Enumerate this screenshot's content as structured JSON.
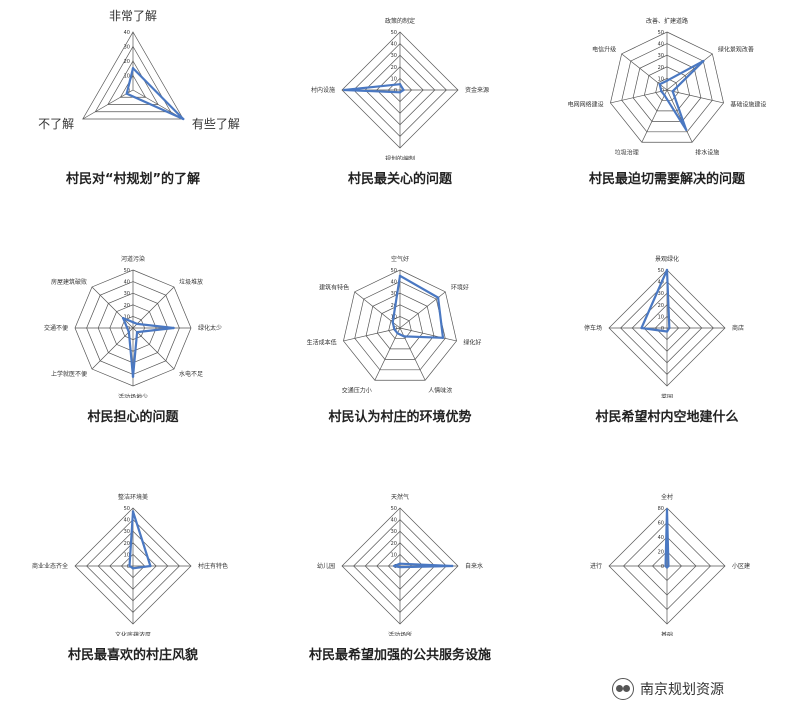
{
  "chart_data": [
    {
      "type": "radar",
      "title": "村民对“村规划”的了解",
      "axes": [
        "非常了解",
        "有些了解",
        "不了解"
      ],
      "rlim": [
        0,
        40
      ],
      "ticks": [
        0,
        10,
        20,
        30,
        40
      ],
      "values": [
        15,
        40,
        5
      ],
      "label_size": "large"
    },
    {
      "type": "radar",
      "title": "村民最关心的问题",
      "axes": [
        "政策的制定",
        "资金来源",
        "规划的编制",
        "村内设施"
      ],
      "rlim": [
        0,
        50
      ],
      "ticks": [
        0,
        10,
        20,
        30,
        40,
        50
      ],
      "values": [
        5,
        3,
        2,
        48
      ]
    },
    {
      "type": "radar",
      "title": "村民最迫切需要解决的问题",
      "axes": [
        "改善、扩建道路",
        "绿化景观改善",
        "基础设施建设",
        "排水设施",
        "垃圾治理",
        "电网网络建设",
        "电信升级"
      ],
      "rlim": [
        0,
        50
      ],
      "ticks": [
        0,
        10,
        20,
        30,
        40,
        50
      ],
      "values": [
        8,
        40,
        5,
        38,
        5,
        5,
        8
      ]
    },
    {
      "type": "radar",
      "title": "村民担心的问题",
      "axes": [
        "河道污染",
        "垃圾堆放",
        "绿化太少",
        "水电不足",
        "活动场地少",
        "上学就医不便",
        "交通不便",
        "房屋建筑破败"
      ],
      "rlim": [
        0,
        50
      ],
      "ticks": [
        0,
        10,
        20,
        30,
        40,
        50
      ],
      "values": [
        5,
        5,
        35,
        5,
        42,
        5,
        5,
        12
      ]
    },
    {
      "type": "radar",
      "title": "村民认为村庄的环境优势",
      "axes": [
        "空气好",
        "环境好",
        "绿化好",
        "人情味浓",
        "交通压力小",
        "生活成本低",
        "建筑有特色"
      ],
      "rlim": [
        0,
        50
      ],
      "ticks": [
        0,
        10,
        20,
        30,
        40,
        50
      ],
      "values": [
        45,
        42,
        38,
        8,
        5,
        5,
        8
      ]
    },
    {
      "type": "radar",
      "title": "村民希望村内空地建什么",
      "axes": [
        "景观绿化",
        "商店",
        "菜园",
        "停车场"
      ],
      "rlim": [
        0,
        50
      ],
      "ticks": [
        0,
        10,
        20,
        30,
        40,
        50
      ],
      "values": [
        50,
        2,
        3,
        22
      ]
    },
    {
      "type": "radar",
      "title": "村民最喜欢的村庄风貌",
      "axes": [
        "整洁环境美",
        "村庄有特色",
        "文化底蕴浓厚",
        "商业业态齐全"
      ],
      "rlim": [
        0,
        50
      ],
      "ticks": [
        0,
        10,
        20,
        30,
        40,
        50
      ],
      "values": [
        47,
        15,
        2,
        3
      ]
    },
    {
      "type": "radar",
      "title": "村民最希望加强的公共服务设施",
      "axes": [
        "天然气",
        "自来水",
        "活动场所",
        "幼儿园"
      ],
      "rlim": [
        0,
        50
      ],
      "ticks": [
        0,
        10,
        20,
        30,
        40,
        50
      ],
      "values": [
        2,
        45,
        1,
        5
      ]
    },
    {
      "type": "radar",
      "title": "",
      "axes": [
        "全村",
        "小区建",
        "基础",
        "进行"
      ],
      "rlim": [
        0,
        80
      ],
      "ticks": [
        0,
        20,
        40,
        60,
        80
      ],
      "values": [
        78,
        2,
        2,
        2
      ]
    }
  ],
  "watermark": {
    "text": "南京规划资源"
  },
  "colors": {
    "series": "#4a78c2",
    "grid": "#555555",
    "label": "#333333"
  }
}
